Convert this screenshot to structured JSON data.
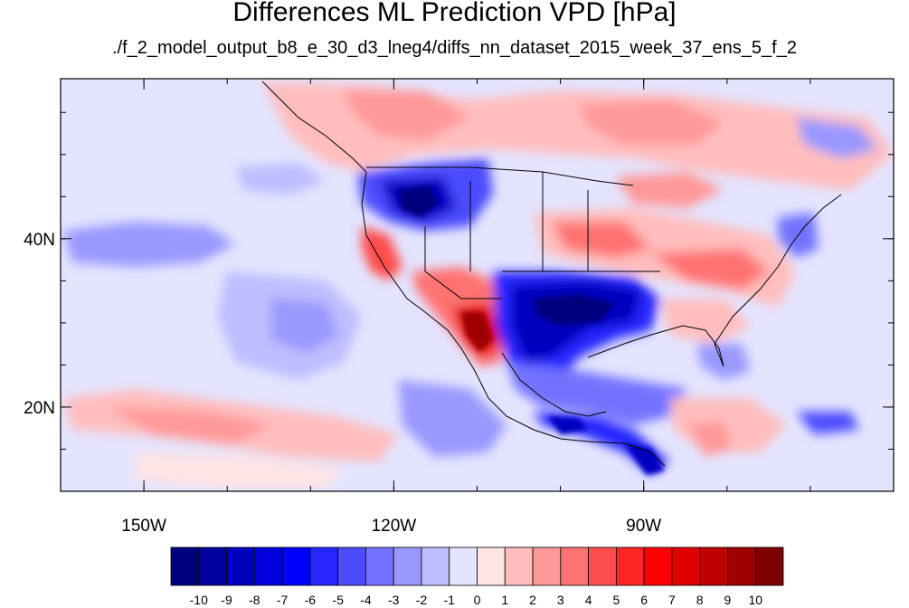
{
  "title": "Differences ML Prediction VPD [hPa]",
  "subtitle": "./f_2_model_output_b8_e_30_d3_lneg4/diffs_nn_dataset_2015_week_37_ens_5_f_2",
  "map": {
    "lon_range": [
      -160,
      -60
    ],
    "lat_range": [
      10,
      59
    ],
    "x_ticks": [
      {
        "lon": -150,
        "label": "150W"
      },
      {
        "lon": -120,
        "label": "120W"
      },
      {
        "lon": -90,
        "label": "90W"
      }
    ],
    "y_ticks": [
      {
        "lat": 40,
        "label": "40N"
      },
      {
        "lat": 20,
        "label": "20N"
      }
    ]
  },
  "colorbar": {
    "levels": [
      "-10",
      "-9",
      "-8",
      "-7",
      "-6",
      "-5",
      "-4",
      "-3",
      "-2",
      "-1",
      "0",
      "1",
      "2",
      "3",
      "4",
      "5",
      "6",
      "7",
      "8",
      "9",
      "10"
    ],
    "colors": [
      "#00007f",
      "#00009f",
      "#0000bf",
      "#0000df",
      "#0000ff",
      "#2626ff",
      "#4c4cff",
      "#7272ff",
      "#9898ff",
      "#bdbdff",
      "#e4e4ff",
      "#ffe4e4",
      "#ffbdbd",
      "#ff9898",
      "#ff7272",
      "#ff4c4c",
      "#ff2626",
      "#ff0000",
      "#df0000",
      "#bf0000",
      "#9f0000",
      "#7f0000"
    ]
  }
}
